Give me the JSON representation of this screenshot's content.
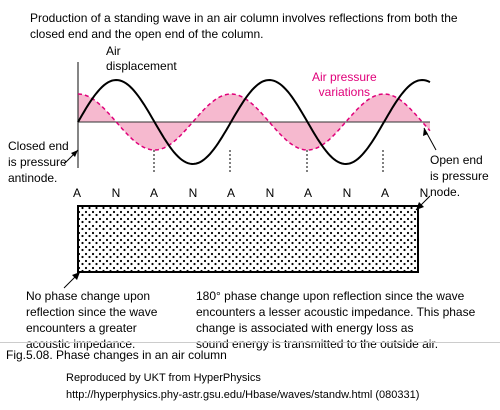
{
  "intro": {
    "line1": "Production of a standing wave in an air column involves reflections from both the",
    "line2": "closed end and the open end of the column."
  },
  "labels": {
    "air_line1": "Air",
    "air_line2": "displacement",
    "pressure_line1": "Air pressure",
    "pressure_line2": "variations",
    "closed_line1": "Closed end",
    "closed_line2": "is pressure",
    "closed_line3": "antinode.",
    "open_line1": "Open end",
    "open_line2": "is pressure",
    "open_line3": "node."
  },
  "nodes": [
    "A",
    "N",
    "A",
    "N",
    "A",
    "N",
    "A",
    "N",
    "A",
    "N"
  ],
  "bottom": {
    "left_line1": "No phase change upon",
    "left_line2": "reflection since the wave",
    "left_line3": "encounters a greater",
    "left_line4": "acoustic impedance.",
    "right_line1": "180° phase change upon reflection since the wave",
    "right_line2": "encounters a lesser acoustic impedance. This phase",
    "right_line3": "change is associated with energy loss as",
    "right_line4": "sound energy is transmitted to the outside air."
  },
  "caption": "Fig.5.08. Phase changes in an air column",
  "credit": "Reproduced by UKT from HyperPhysics",
  "url": "http://hyperphysics.phy-astr.gsu.edu/Hbase/waves/standw.html (080331)",
  "colors": {
    "pressure": "#e0007a",
    "pressure_fill": "#f6b9cf",
    "displacement": "#000000"
  }
}
